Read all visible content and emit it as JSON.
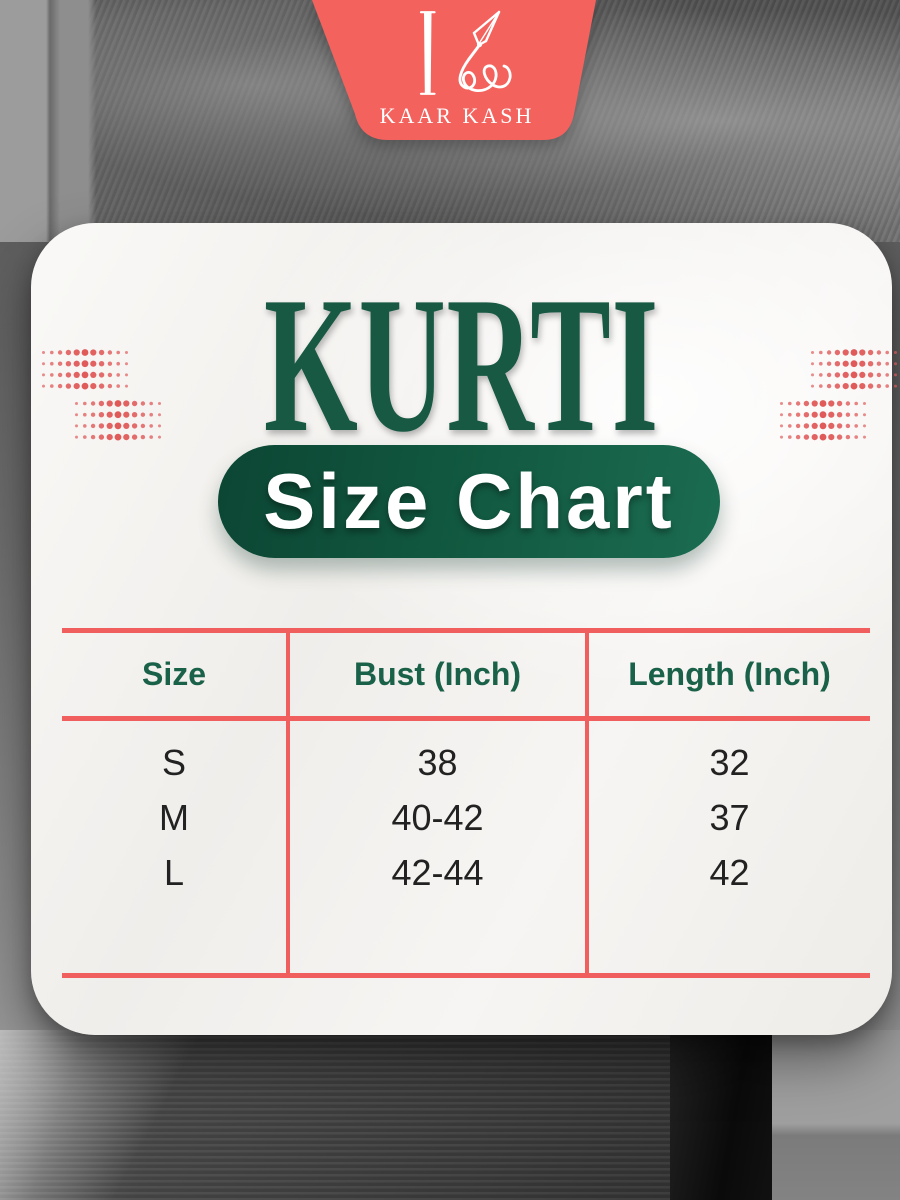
{
  "brand": {
    "logo_text": "KAAR KASH",
    "monogram_icon": "pen-k-monogram-icon"
  },
  "card": {
    "title": "KURTI",
    "badge": "Size Chart"
  },
  "size_table": {
    "columns": [
      "Size",
      "Bust (Inch)",
      "Length (Inch)"
    ],
    "rows": [
      [
        "S",
        "38",
        "32"
      ],
      [
        "M",
        "40-42",
        "37"
      ],
      [
        "L",
        "42-44",
        "42"
      ]
    ]
  },
  "chart_data": {
    "type": "table",
    "title": "KURTI Size Chart",
    "columns": [
      "Size",
      "Bust (Inch)",
      "Length (Inch)"
    ],
    "rows": [
      [
        "S",
        "38",
        "32"
      ],
      [
        "M",
        "40-42",
        "37"
      ],
      [
        "L",
        "42-44",
        "42"
      ]
    ]
  },
  "colors": {
    "coral": "#f15e5e",
    "badge_coral": "#f4625e",
    "dot": "#e05858",
    "title_green": "#175943",
    "header_green": "#1a6149",
    "pill_green_dark": "#0c4634",
    "pill_green_light": "#1b6c51",
    "card_bg": "#f6f4f1",
    "body_text": "#222222"
  }
}
